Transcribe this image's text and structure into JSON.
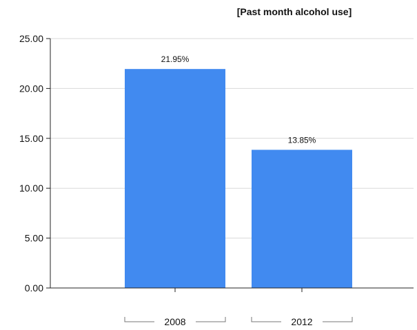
{
  "chart_data": {
    "type": "bar",
    "title": "[Past month alcohol use]",
    "xlabel": "",
    "ylabel": "",
    "categories": [
      "2008",
      "2012"
    ],
    "values": [
      21.95,
      13.85
    ],
    "data_labels": [
      "21.95%",
      "13.85%"
    ],
    "ylim": [
      0,
      25
    ],
    "y_ticks": [
      "0.00",
      "5.00",
      "10.00",
      "15.00",
      "20.00",
      "25.00"
    ],
    "grid": true,
    "legend": "none",
    "bar_color": "#418af0"
  }
}
